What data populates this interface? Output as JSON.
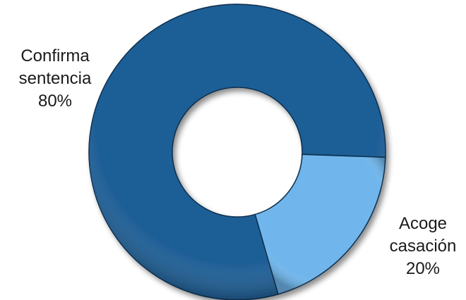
{
  "chart_data": {
    "type": "pie",
    "variant": "donut",
    "title": "",
    "categories": [
      "Confirma sentencia",
      "Acoge casación"
    ],
    "values": [
      80,
      20
    ],
    "value_labels": [
      "80%",
      "20%"
    ],
    "label_lines": [
      [
        "Confirma",
        "sentencia"
      ],
      [
        "Acoge",
        "casación"
      ]
    ],
    "colors": [
      "#1f5f96",
      "#6fb6ec"
    ],
    "legend": "none"
  }
}
